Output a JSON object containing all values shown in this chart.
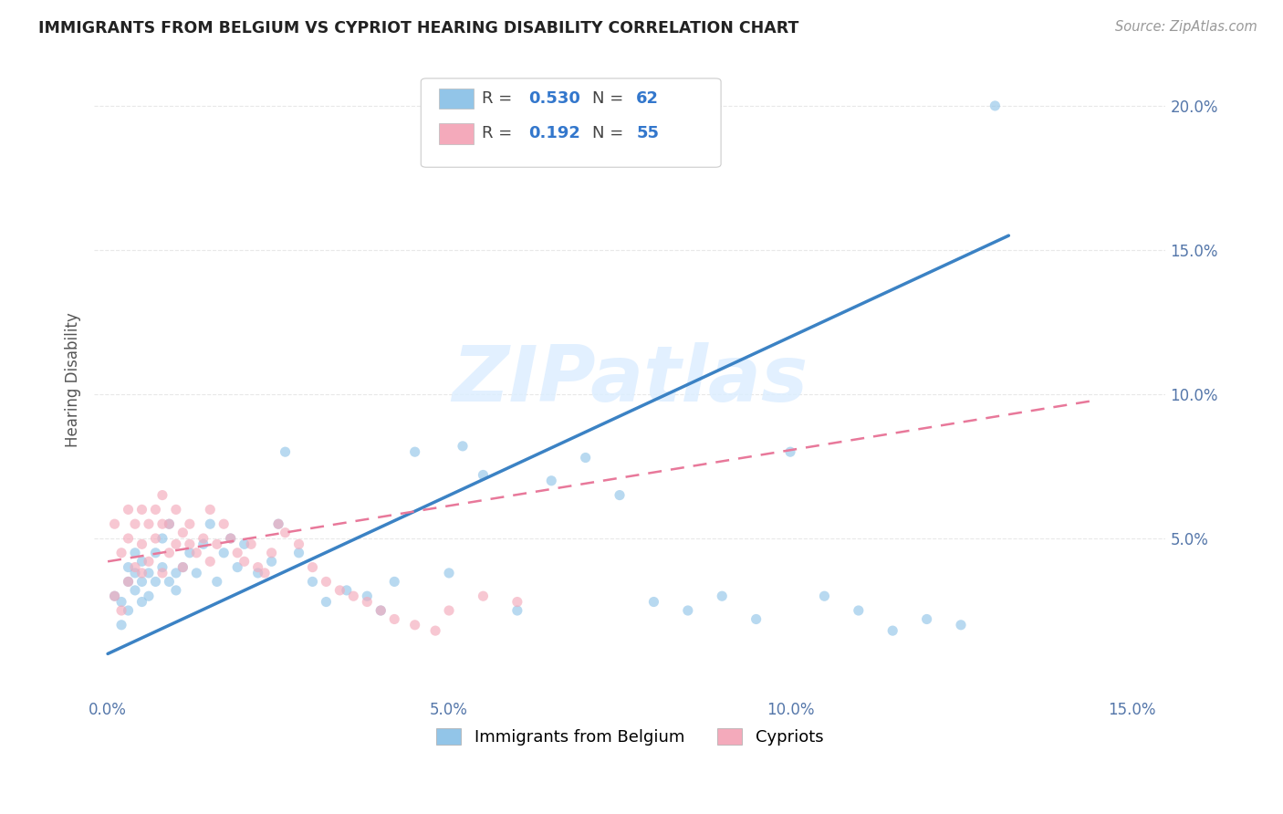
{
  "title": "IMMIGRANTS FROM BELGIUM VS CYPRIOT HEARING DISABILITY CORRELATION CHART",
  "source": "Source: ZipAtlas.com",
  "ylabel": "Hearing Disability",
  "xlim": [
    -0.002,
    0.155
  ],
  "ylim": [
    -0.005,
    0.215
  ],
  "xticks": [
    0.0,
    0.05,
    0.1,
    0.15
  ],
  "xticklabels": [
    "0.0%",
    "5.0%",
    "10.0%",
    "15.0%"
  ],
  "yticks": [
    0.05,
    0.1,
    0.15,
    0.2
  ],
  "yticklabels": [
    "5.0%",
    "10.0%",
    "15.0%",
    "20.0%"
  ],
  "watermark": "ZIPatlas",
  "legend_entries": [
    {
      "label": "Immigrants from Belgium",
      "color": "#92C5E8",
      "R": "0.530",
      "N": "62"
    },
    {
      "label": "Cypriots",
      "color": "#F4AABB",
      "R": "0.192",
      "N": "55"
    }
  ],
  "blue_scatter_x": [
    0.001,
    0.002,
    0.002,
    0.003,
    0.003,
    0.003,
    0.004,
    0.004,
    0.004,
    0.005,
    0.005,
    0.005,
    0.006,
    0.006,
    0.007,
    0.007,
    0.008,
    0.008,
    0.009,
    0.009,
    0.01,
    0.01,
    0.011,
    0.012,
    0.013,
    0.014,
    0.015,
    0.016,
    0.017,
    0.018,
    0.019,
    0.02,
    0.022,
    0.024,
    0.025,
    0.026,
    0.028,
    0.03,
    0.032,
    0.035,
    0.038,
    0.04,
    0.042,
    0.045,
    0.05,
    0.052,
    0.055,
    0.06,
    0.065,
    0.07,
    0.075,
    0.08,
    0.085,
    0.09,
    0.095,
    0.1,
    0.105,
    0.11,
    0.115,
    0.12,
    0.125,
    0.13
  ],
  "blue_scatter_y": [
    0.03,
    0.02,
    0.028,
    0.035,
    0.025,
    0.04,
    0.032,
    0.038,
    0.045,
    0.028,
    0.035,
    0.042,
    0.038,
    0.03,
    0.045,
    0.035,
    0.04,
    0.05,
    0.035,
    0.055,
    0.038,
    0.032,
    0.04,
    0.045,
    0.038,
    0.048,
    0.055,
    0.035,
    0.045,
    0.05,
    0.04,
    0.048,
    0.038,
    0.042,
    0.055,
    0.08,
    0.045,
    0.035,
    0.028,
    0.032,
    0.03,
    0.025,
    0.035,
    0.08,
    0.038,
    0.082,
    0.072,
    0.025,
    0.07,
    0.078,
    0.065,
    0.028,
    0.025,
    0.03,
    0.022,
    0.08,
    0.03,
    0.025,
    0.018,
    0.022,
    0.02,
    0.2
  ],
  "pink_scatter_x": [
    0.001,
    0.001,
    0.002,
    0.002,
    0.003,
    0.003,
    0.003,
    0.004,
    0.004,
    0.005,
    0.005,
    0.005,
    0.006,
    0.006,
    0.007,
    0.007,
    0.008,
    0.008,
    0.008,
    0.009,
    0.009,
    0.01,
    0.01,
    0.011,
    0.011,
    0.012,
    0.012,
    0.013,
    0.014,
    0.015,
    0.015,
    0.016,
    0.017,
    0.018,
    0.019,
    0.02,
    0.021,
    0.022,
    0.023,
    0.024,
    0.025,
    0.026,
    0.028,
    0.03,
    0.032,
    0.034,
    0.036,
    0.038,
    0.04,
    0.042,
    0.045,
    0.048,
    0.05,
    0.055,
    0.06
  ],
  "pink_scatter_y": [
    0.03,
    0.055,
    0.025,
    0.045,
    0.035,
    0.05,
    0.06,
    0.04,
    0.055,
    0.038,
    0.06,
    0.048,
    0.042,
    0.055,
    0.05,
    0.06,
    0.038,
    0.055,
    0.065,
    0.045,
    0.055,
    0.048,
    0.06,
    0.052,
    0.04,
    0.048,
    0.055,
    0.045,
    0.05,
    0.042,
    0.06,
    0.048,
    0.055,
    0.05,
    0.045,
    0.042,
    0.048,
    0.04,
    0.038,
    0.045,
    0.055,
    0.052,
    0.048,
    0.04,
    0.035,
    0.032,
    0.03,
    0.028,
    0.025,
    0.022,
    0.02,
    0.018,
    0.025,
    0.03,
    0.028
  ],
  "blue_line_x": [
    0.0,
    0.132
  ],
  "blue_line_y": [
    0.01,
    0.155
  ],
  "pink_line_x": [
    0.0,
    0.145
  ],
  "pink_line_y": [
    0.042,
    0.098
  ],
  "background_color": "#FFFFFF",
  "grid_color": "#E8E8E8",
  "scatter_alpha": 0.65,
  "scatter_size": 65
}
